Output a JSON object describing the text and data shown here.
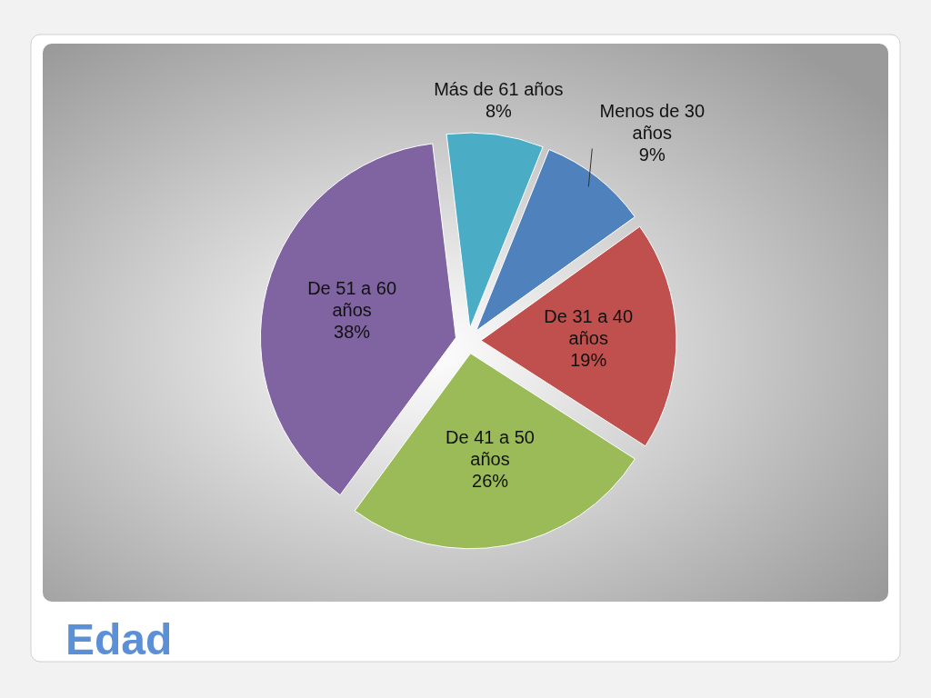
{
  "chart_data": {
    "type": "pie",
    "title": "Edad",
    "categories": [
      "Más de 61 años",
      "Menos de 30 años",
      "De 31 a 40 años",
      "De 41 a 50 años",
      "De 51 a 60 años"
    ],
    "values": [
      8,
      9,
      19,
      26,
      38
    ],
    "colors": [
      "#4bacc6",
      "#4f81bd",
      "#c0504d",
      "#9bbb59",
      "#8064a2"
    ],
    "value_labels": [
      "8%",
      "9%",
      "19%",
      "26%",
      "38%"
    ]
  }
}
